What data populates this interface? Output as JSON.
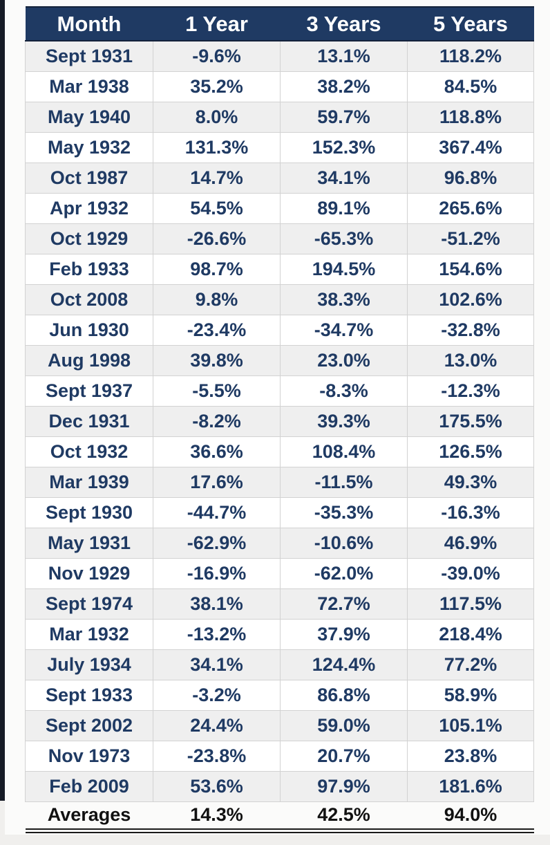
{
  "colors": {
    "header_bg": "#1F3A63",
    "header_text": "#FFFFFF",
    "header_border": "#14223A",
    "body_text": "#1F3A63",
    "row_alt_bg": "#EFEFEF",
    "row_bg": "#FFFFFF",
    "grid_line": "#D2D2D2",
    "averages_text": "#111111",
    "double_rule": "#1A1A1A",
    "left_bar": "#161B26"
  },
  "chart_data": {
    "type": "table",
    "columns": [
      "Month",
      "1 Year",
      "3 Years",
      "5 Years"
    ],
    "rows": [
      [
        "Sept 1931",
        "-9.6%",
        "13.1%",
        "118.2%"
      ],
      [
        "Mar 1938",
        "35.2%",
        "38.2%",
        "84.5%"
      ],
      [
        "May 1940",
        "8.0%",
        "59.7%",
        "118.8%"
      ],
      [
        "May 1932",
        "131.3%",
        "152.3%",
        "367.4%"
      ],
      [
        "Oct 1987",
        "14.7%",
        "34.1%",
        "96.8%"
      ],
      [
        "Apr 1932",
        "54.5%",
        "89.1%",
        "265.6%"
      ],
      [
        "Oct 1929",
        "-26.6%",
        "-65.3%",
        "-51.2%"
      ],
      [
        "Feb 1933",
        "98.7%",
        "194.5%",
        "154.6%"
      ],
      [
        "Oct 2008",
        "9.8%",
        "38.3%",
        "102.6%"
      ],
      [
        "Jun 1930",
        "-23.4%",
        "-34.7%",
        "-32.8%"
      ],
      [
        "Aug 1998",
        "39.8%",
        "23.0%",
        "13.0%"
      ],
      [
        "Sept 1937",
        "-5.5%",
        "-8.3%",
        "-12.3%"
      ],
      [
        "Dec 1931",
        "-8.2%",
        "39.3%",
        "175.5%"
      ],
      [
        "Oct 1932",
        "36.6%",
        "108.4%",
        "126.5%"
      ],
      [
        "Mar 1939",
        "17.6%",
        "-11.5%",
        "49.3%"
      ],
      [
        "Sept 1930",
        "-44.7%",
        "-35.3%",
        "-16.3%"
      ],
      [
        "May 1931",
        "-62.9%",
        "-10.6%",
        "46.9%"
      ],
      [
        "Nov 1929",
        "-16.9%",
        "-62.0%",
        "-39.0%"
      ],
      [
        "Sept 1974",
        "38.1%",
        "72.7%",
        "117.5%"
      ],
      [
        "Mar 1932",
        "-13.2%",
        "37.9%",
        "218.4%"
      ],
      [
        "July 1934",
        "34.1%",
        "124.4%",
        "77.2%"
      ],
      [
        "Sept 1933",
        "-3.2%",
        "86.8%",
        "58.9%"
      ],
      [
        "Sept 2002",
        "24.4%",
        "59.0%",
        "105.1%"
      ],
      [
        "Nov 1973",
        "-23.8%",
        "20.7%",
        "23.8%"
      ],
      [
        "Feb 2009",
        "53.6%",
        "97.9%",
        "181.6%"
      ]
    ],
    "averages": [
      "Averages",
      "14.3%",
      "42.5%",
      "94.0%"
    ],
    "layout": {
      "legend": "none",
      "grid": "on",
      "striped_rows": true,
      "first_striped_row_index": 0
    }
  }
}
